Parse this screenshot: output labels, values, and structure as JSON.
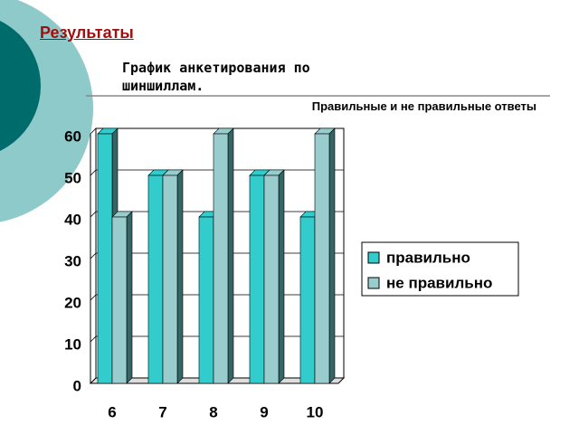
{
  "heading": "Результаты",
  "chart_data": {
    "type": "bar",
    "title": "График анкетирования по шиншиллам.",
    "subtitle": "Правильные и не правильные ответы",
    "categories": [
      "6",
      "7",
      "8",
      "9",
      "10"
    ],
    "series": [
      {
        "name": "правильно",
        "color": "#33cccc",
        "values": [
          60,
          50,
          40,
          50,
          40
        ]
      },
      {
        "name": "не правильно",
        "color": "#99cccc",
        "values": [
          40,
          50,
          60,
          50,
          60
        ]
      }
    ],
    "ylim": [
      0,
      60
    ],
    "yticks": [
      0,
      10,
      20,
      30,
      40,
      50,
      60
    ],
    "grid": true,
    "legend": "right"
  }
}
